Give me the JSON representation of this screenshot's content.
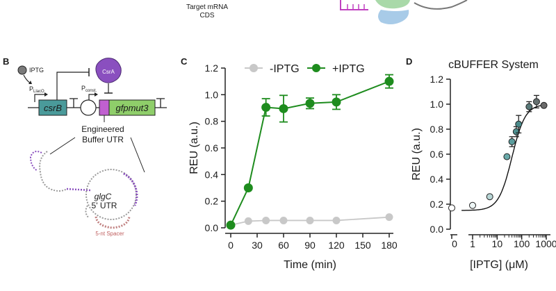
{
  "top_fragment": {
    "label_line1": "Target mRNA",
    "label_line2": "CDS"
  },
  "panel_b": {
    "letter": "B",
    "inducer": "IPTG",
    "promoter_lac": "P",
    "promoter_lac_sub": "LlacO",
    "promoter_const": "P",
    "promoter_const_sub": "const.",
    "gene1": "csrB",
    "gene2": "gfpmut3",
    "protein": "CsrA",
    "engineered_line1": "Engineered",
    "engineered_line2": "Buffer UTR",
    "utr_name": "glgC",
    "utr_line2": "5' UTR",
    "spacer": "5-nt Spacer"
  },
  "colors": {
    "green": "#1e8c1e",
    "light_gray": "#c8c8c8",
    "purple": "#8a4fbf",
    "teal": "#4a9a9a",
    "gfp_green": "#8fce6a"
  },
  "chart_data": [
    {
      "type": "line",
      "panel": "C",
      "title": "",
      "xlabel": "Time (min)",
      "ylabel": "REU (a.u.)",
      "xlim": [
        0,
        180
      ],
      "ylim": [
        0,
        1.2
      ],
      "xticks": [
        0,
        30,
        60,
        90,
        120,
        150,
        180
      ],
      "yticks": [
        "0.0",
        "0.2",
        "0.4",
        "0.6",
        "0.8",
        "1.0",
        "1.2"
      ],
      "legend_position": "top",
      "series": [
        {
          "name": "-IPTG",
          "color": "#c8c8c8",
          "x": [
            0,
            20,
            40,
            60,
            90,
            120,
            180
          ],
          "y": [
            0.02,
            0.05,
            0.055,
            0.055,
            0.055,
            0.055,
            0.08
          ],
          "err": [
            0.005,
            0.01,
            0.01,
            0.01,
            0.01,
            0.01,
            0.01
          ]
        },
        {
          "name": "+IPTG",
          "color": "#1e8c1e",
          "x": [
            0,
            20,
            40,
            60,
            90,
            120,
            180
          ],
          "y": [
            0.02,
            0.3,
            0.905,
            0.895,
            0.935,
            0.945,
            1.1
          ],
          "err": [
            0.005,
            0.01,
            0.065,
            0.1,
            0.04,
            0.055,
            0.05
          ]
        }
      ]
    },
    {
      "type": "scatter",
      "panel": "D",
      "title": "cBUFFER System",
      "xlabel": "[IPTG] (μM)",
      "ylabel": "REU (a.u.)",
      "xscale": "log with zero break",
      "xtick_labels": [
        "0",
        "1",
        "10",
        "100",
        "1000"
      ],
      "ylim": [
        0,
        1.2
      ],
      "yticks": [
        "0.0",
        "0.2",
        "0.4",
        "0.6",
        "0.8",
        "1.0",
        "1.2"
      ],
      "points": [
        {
          "x": 0,
          "y": 0.17,
          "err": 0
        },
        {
          "x": 1,
          "y": 0.19,
          "err": 0
        },
        {
          "x": 5,
          "y": 0.26,
          "err": 0
        },
        {
          "x": 25,
          "y": 0.58,
          "err": 0
        },
        {
          "x": 40,
          "y": 0.7,
          "err": 0.04
        },
        {
          "x": 60,
          "y": 0.78,
          "err": 0.04
        },
        {
          "x": 75,
          "y": 0.84,
          "err": 0.07
        },
        {
          "x": 200,
          "y": 0.98,
          "err": 0.04
        },
        {
          "x": 400,
          "y": 1.02,
          "err": 0.05
        },
        {
          "x": 800,
          "y": 0.99,
          "err": 0
        }
      ],
      "fit": {
        "bottom": 0.15,
        "top": 1.0,
        "ec50": 40,
        "hill": 1.6
      }
    }
  ]
}
